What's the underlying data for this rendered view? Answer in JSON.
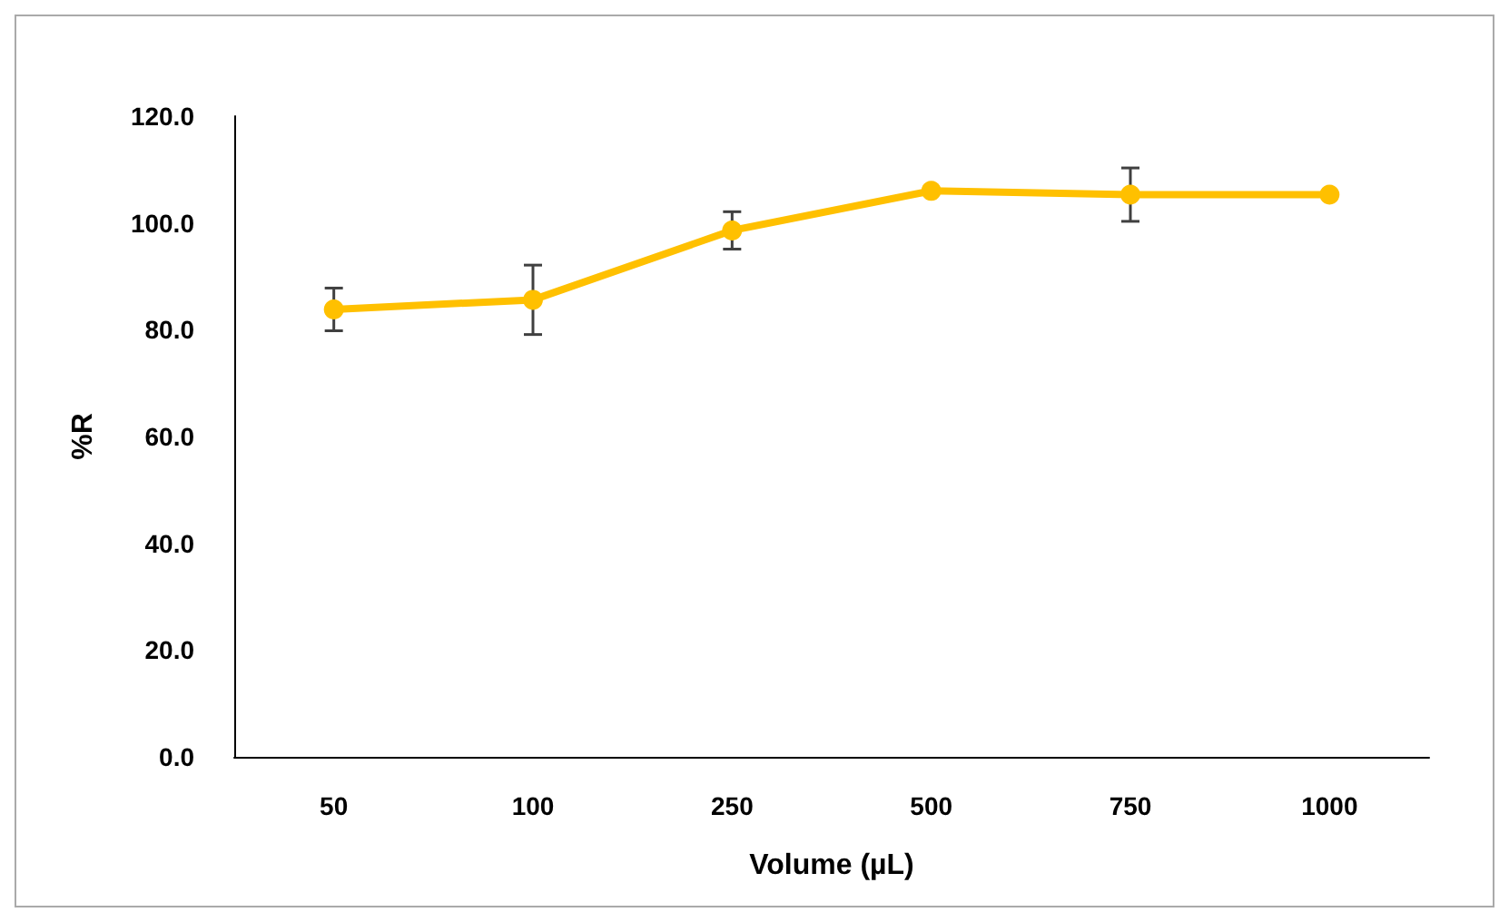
{
  "chart_data": {
    "type": "line",
    "xlabel": "Volume (µL)",
    "ylabel": "%R",
    "categories": [
      "50",
      "100",
      "250",
      "500",
      "750",
      "1000"
    ],
    "series": [
      {
        "color": "#ffc000",
        "values": [
          83.8,
          85.6,
          98.6,
          106.0,
          105.3,
          105.3
        ],
        "errors": [
          4.0,
          6.5,
          3.5,
          null,
          5.0,
          null
        ]
      }
    ],
    "ylim": [
      0,
      120
    ],
    "yticks": [
      {
        "value": 0,
        "label": "0.0"
      },
      {
        "value": 20,
        "label": "20.0"
      },
      {
        "value": 40,
        "label": "40.0"
      },
      {
        "value": 60,
        "label": "60.0"
      },
      {
        "value": 80,
        "label": "80.0"
      },
      {
        "value": 100,
        "label": "100.0"
      },
      {
        "value": 120,
        "label": "120.0"
      }
    ],
    "grid": false,
    "marker": "circle",
    "line_style": "solid"
  }
}
